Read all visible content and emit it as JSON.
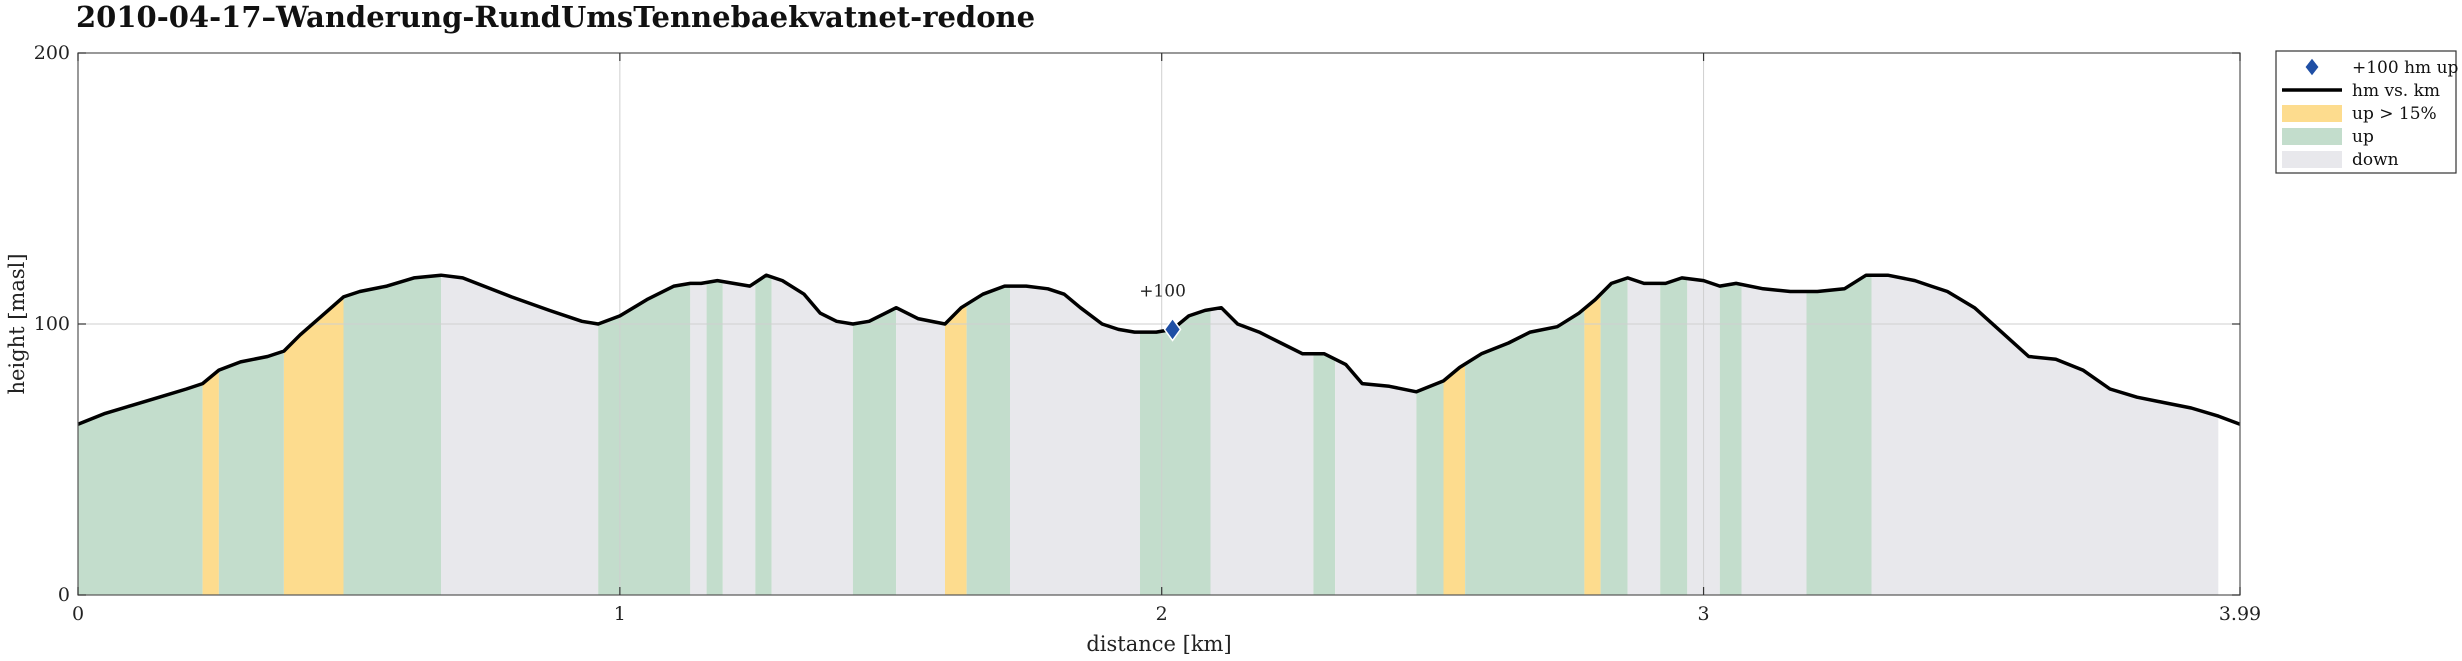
{
  "chart_data": {
    "type": "area",
    "title": "2010-04-17–Wanderung-RundUmsTennebaekvatnet-redone",
    "xlabel": "distance [km]",
    "ylabel": "height [masl]",
    "xlim": [
      0,
      3.99
    ],
    "ylim": [
      0,
      200
    ],
    "xticks": [
      0,
      1,
      2,
      3,
      3.99
    ],
    "xtick_labels": [
      "0",
      "1",
      "2",
      "3",
      "3.99"
    ],
    "yticks": [
      0,
      100,
      200
    ],
    "ytick_labels": [
      "0",
      "100",
      "200"
    ],
    "grid": true,
    "legend_position": "outside-top-right",
    "legend": [
      {
        "key": "marker",
        "label": "+100 hm up",
        "color": "#1f4fa5"
      },
      {
        "key": "line",
        "label": "hm vs. km",
        "color": "#000000"
      },
      {
        "key": "steep",
        "label": "up > 15%",
        "color": "#fddc8e"
      },
      {
        "key": "up",
        "label": "up",
        "color": "#c3ddcc"
      },
      {
        "key": "down",
        "label": "down",
        "color": "#e8e8ec"
      }
    ],
    "series": [
      {
        "name": "hm vs. km",
        "x": [
          0,
          0.05,
          0.1,
          0.15,
          0.2,
          0.23,
          0.26,
          0.3,
          0.35,
          0.38,
          0.41,
          0.45,
          0.49,
          0.52,
          0.57,
          0.62,
          0.67,
          0.71,
          0.8,
          0.87,
          0.93,
          0.96,
          1.0,
          1.05,
          1.1,
          1.13,
          1.15,
          1.18,
          1.21,
          1.24,
          1.27,
          1.3,
          1.34,
          1.37,
          1.4,
          1.43,
          1.46,
          1.49,
          1.51,
          1.55,
          1.6,
          1.63,
          1.67,
          1.71,
          1.75,
          1.79,
          1.82,
          1.85,
          1.89,
          1.92,
          1.95,
          1.99,
          2.02,
          2.05,
          2.08,
          2.11,
          2.14,
          2.18,
          2.22,
          2.26,
          2.3,
          2.34,
          2.37,
          2.42,
          2.47,
          2.52,
          2.55,
          2.59,
          2.64,
          2.68,
          2.73,
          2.77,
          2.8,
          2.83,
          2.86,
          2.89,
          2.93,
          2.96,
          3.0,
          3.03,
          3.06,
          3.11,
          3.16,
          3.21,
          3.26,
          3.3,
          3.34,
          3.39,
          3.42,
          3.45,
          3.5,
          3.55,
          3.6,
          3.65,
          3.7,
          3.75,
          3.8,
          3.85,
          3.9,
          3.95,
          3.99
        ],
        "y": [
          63,
          67,
          70,
          73,
          76,
          78,
          83,
          86,
          88,
          90,
          96,
          103,
          110,
          112,
          114,
          117,
          118,
          117,
          110,
          105,
          101,
          100,
          103,
          109,
          114,
          115,
          115,
          116,
          115,
          114,
          118,
          116,
          111,
          104,
          101,
          100,
          101,
          104,
          106,
          102,
          100,
          106,
          111,
          114,
          114,
          113,
          111,
          106,
          100,
          98,
          97,
          97,
          98,
          103,
          105,
          106,
          100,
          97,
          93,
          89,
          89,
          85,
          78,
          77,
          75,
          79,
          84,
          89,
          93,
          97,
          99,
          104,
          109,
          115,
          117,
          115,
          115,
          117,
          116,
          114,
          115,
          113,
          112,
          112,
          113,
          118,
          118,
          116,
          114,
          112,
          106,
          97,
          88,
          87,
          83,
          76,
          73,
          71,
          69,
          66,
          63
        ]
      }
    ],
    "segments": [
      {
        "from": 0.0,
        "to": 0.23,
        "class": "up"
      },
      {
        "from": 0.23,
        "to": 0.26,
        "class": "steep"
      },
      {
        "from": 0.26,
        "to": 0.38,
        "class": "up"
      },
      {
        "from": 0.38,
        "to": 0.49,
        "class": "steep"
      },
      {
        "from": 0.49,
        "to": 0.67,
        "class": "up"
      },
      {
        "from": 0.67,
        "to": 0.96,
        "class": "down"
      },
      {
        "from": 0.96,
        "to": 1.13,
        "class": "up"
      },
      {
        "from": 1.13,
        "to": 1.16,
        "class": "down"
      },
      {
        "from": 1.16,
        "to": 1.19,
        "class": "up"
      },
      {
        "from": 1.19,
        "to": 1.25,
        "class": "down"
      },
      {
        "from": 1.25,
        "to": 1.28,
        "class": "up"
      },
      {
        "from": 1.28,
        "to": 1.43,
        "class": "down"
      },
      {
        "from": 1.43,
        "to": 1.51,
        "class": "up"
      },
      {
        "from": 1.51,
        "to": 1.6,
        "class": "down"
      },
      {
        "from": 1.6,
        "to": 1.64,
        "class": "steep"
      },
      {
        "from": 1.64,
        "to": 1.72,
        "class": "up"
      },
      {
        "from": 1.72,
        "to": 1.96,
        "class": "down"
      },
      {
        "from": 1.96,
        "to": 2.09,
        "class": "up"
      },
      {
        "from": 2.09,
        "to": 2.28,
        "class": "down"
      },
      {
        "from": 2.28,
        "to": 2.32,
        "class": "up"
      },
      {
        "from": 2.32,
        "to": 2.47,
        "class": "down"
      },
      {
        "from": 2.47,
        "to": 2.52,
        "class": "up"
      },
      {
        "from": 2.52,
        "to": 2.56,
        "class": "steep"
      },
      {
        "from": 2.56,
        "to": 2.78,
        "class": "up"
      },
      {
        "from": 2.78,
        "to": 2.81,
        "class": "steep"
      },
      {
        "from": 2.81,
        "to": 2.86,
        "class": "up"
      },
      {
        "from": 2.86,
        "to": 2.92,
        "class": "down"
      },
      {
        "from": 2.92,
        "to": 2.97,
        "class": "up"
      },
      {
        "from": 2.97,
        "to": 3.03,
        "class": "down"
      },
      {
        "from": 3.03,
        "to": 3.07,
        "class": "up"
      },
      {
        "from": 3.07,
        "to": 3.19,
        "class": "down"
      },
      {
        "from": 3.19,
        "to": 3.31,
        "class": "up"
      },
      {
        "from": 3.31,
        "to": 3.95,
        "class": "down"
      }
    ],
    "markers": [
      {
        "x": 2.02,
        "y": 98,
        "label": "+100"
      }
    ]
  }
}
